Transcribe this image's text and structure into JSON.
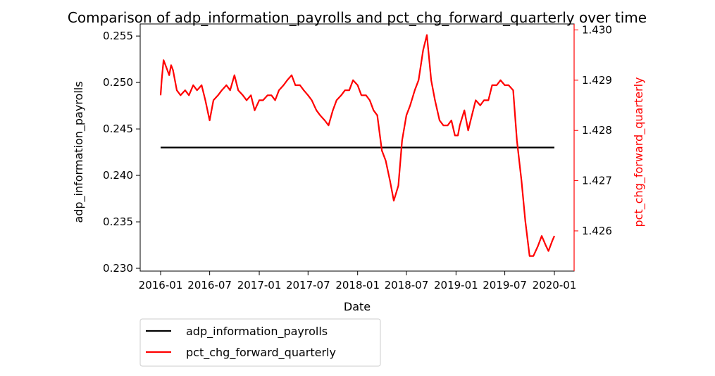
{
  "chart_data": {
    "type": "line",
    "title": "Comparison of adp_information_payrolls and pct_chg_forward_quarterly over time",
    "xlabel": "Date",
    "ylabel_left": "adp_information_payrolls",
    "ylabel_right": "pct_chg_forward_quarterly",
    "x_range": [
      "2016-01-01",
      "2020-01-01"
    ],
    "x_ticks": [
      "2016-01",
      "2016-07",
      "2017-01",
      "2017-07",
      "2018-01",
      "2018-07",
      "2019-01",
      "2019-07",
      "2020-01"
    ],
    "ylim_left": [
      0.2297,
      0.2563
    ],
    "ylim_right": [
      1.4252,
      1.43012
    ],
    "yticks_left": [
      "0.230",
      "0.235",
      "0.240",
      "0.245",
      "0.250",
      "0.255"
    ],
    "yticks_right": [
      "1.426",
      "1.427",
      "1.428",
      "1.429",
      "1.430"
    ],
    "grid": false,
    "legend_position": "below-left",
    "series": [
      {
        "name": "adp_information_payrolls",
        "axis": "left",
        "color": "#000000",
        "x": [
          "2016-01-01",
          "2020-01-01"
        ],
        "y": [
          0.243,
          0.243
        ]
      },
      {
        "name": "pct_chg_forward_quarterly",
        "axis": "right",
        "color": "#ff0000",
        "x": [
          "2016-01-01",
          "2016-01-05",
          "2016-01-12",
          "2016-01-19",
          "2016-01-26",
          "2016-02-02",
          "2016-02-09",
          "2016-02-16",
          "2016-02-23",
          "2016-03-01",
          "2016-03-15",
          "2016-04-01",
          "2016-04-15",
          "2016-05-01",
          "2016-05-15",
          "2016-06-01",
          "2016-06-15",
          "2016-07-01",
          "2016-07-15",
          "2016-08-01",
          "2016-08-15",
          "2016-09-01",
          "2016-09-15",
          "2016-10-01",
          "2016-10-15",
          "2016-11-01",
          "2016-11-15",
          "2016-12-01",
          "2016-12-15",
          "2017-01-01",
          "2017-01-15",
          "2017-02-01",
          "2017-02-15",
          "2017-03-01",
          "2017-03-15",
          "2017-04-01",
          "2017-04-15",
          "2017-05-01",
          "2017-05-15",
          "2017-06-01",
          "2017-06-15",
          "2017-07-01",
          "2017-07-15",
          "2017-08-01",
          "2017-08-15",
          "2017-09-01",
          "2017-09-15",
          "2017-10-01",
          "2017-10-15",
          "2017-11-01",
          "2017-11-15",
          "2017-12-01",
          "2017-12-15",
          "2018-01-01",
          "2018-01-15",
          "2018-02-01",
          "2018-02-15",
          "2018-03-01",
          "2018-03-15",
          "2018-04-01",
          "2018-04-15",
          "2018-05-01",
          "2018-05-15",
          "2018-06-01",
          "2018-06-15",
          "2018-07-01",
          "2018-07-15",
          "2018-08-01",
          "2018-08-15",
          "2018-09-01",
          "2018-09-15",
          "2018-10-01",
          "2018-10-15",
          "2018-11-01",
          "2018-11-15",
          "2018-12-01",
          "2018-12-15",
          "2018-12-28",
          "2019-01-08",
          "2019-01-15",
          "2019-02-01",
          "2019-02-15",
          "2019-03-01",
          "2019-03-15",
          "2019-04-01",
          "2019-04-15",
          "2019-05-01",
          "2019-05-15",
          "2019-06-01",
          "2019-06-15",
          "2019-07-01",
          "2019-07-15",
          "2019-08-01",
          "2019-08-15",
          "2019-09-01",
          "2019-09-15",
          "2019-10-01",
          "2019-10-15",
          "2019-11-01",
          "2019-11-15",
          "2019-12-01",
          "2019-12-10",
          "2019-12-17",
          "2019-12-24",
          "2020-01-01"
        ],
        "y": [
          1.4287,
          1.429,
          1.4294,
          1.4293,
          1.4292,
          1.4291,
          1.4293,
          1.4292,
          1.429,
          1.4288,
          1.4287,
          1.4288,
          1.4287,
          1.4289,
          1.4288,
          1.4289,
          1.4286,
          1.4282,
          1.4286,
          1.4287,
          1.4288,
          1.4289,
          1.4288,
          1.4291,
          1.4288,
          1.4287,
          1.4286,
          1.4287,
          1.4284,
          1.4286,
          1.4286,
          1.4287,
          1.4287,
          1.4286,
          1.4288,
          1.4289,
          1.429,
          1.4291,
          1.4289,
          1.4289,
          1.4288,
          1.4287,
          1.4286,
          1.4284,
          1.4283,
          1.4282,
          1.4281,
          1.4284,
          1.4286,
          1.4287,
          1.4288,
          1.4288,
          1.429,
          1.4289,
          1.4287,
          1.4287,
          1.4286,
          1.4284,
          1.4283,
          1.4276,
          1.4274,
          1.427,
          1.4266,
          1.4269,
          1.4278,
          1.4283,
          1.4285,
          1.4288,
          1.429,
          1.4296,
          1.4299,
          1.429,
          1.4286,
          1.4282,
          1.4281,
          1.4281,
          1.4282,
          1.4279,
          1.4279,
          1.4281,
          1.4284,
          1.428,
          1.4283,
          1.4286,
          1.4285,
          1.4286,
          1.4286,
          1.4289,
          1.4289,
          1.429,
          1.4289,
          1.4289,
          1.4288,
          1.4278,
          1.427,
          1.4262,
          1.4255,
          1.4255,
          1.4257,
          1.4259,
          1.4257,
          1.4256,
          1.4257,
          1.4258,
          1.4259
        ]
      }
    ]
  }
}
